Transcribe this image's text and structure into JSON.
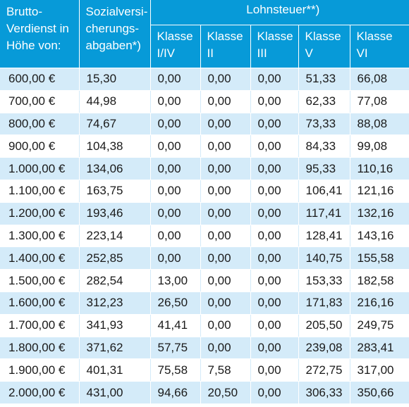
{
  "header": {
    "col_brutto": [
      "Brutto-",
      "Verdienst in",
      "Höhe von:"
    ],
    "col_sozial": [
      "Sozialversi-",
      "cherungs-",
      "abgaben*)"
    ],
    "lohnsteuer": "Lohnsteuer**)",
    "klassen": [
      [
        "Klasse",
        "I/IV"
      ],
      [
        "Klasse",
        "II"
      ],
      [
        "Klasse",
        "III"
      ],
      [
        "Klasse",
        "V"
      ],
      [
        "Klasse",
        "VI"
      ]
    ]
  },
  "rows": [
    [
      "600,00 €",
      "15,30",
      "0,00",
      "0,00",
      "0,00",
      "51,33",
      "66,08"
    ],
    [
      "700,00 €",
      "44,98",
      "0,00",
      "0,00",
      "0,00",
      "62,33",
      "77,08"
    ],
    [
      "800,00 €",
      "74,67",
      "0,00",
      "0,00",
      "0,00",
      "73,33",
      "88,08"
    ],
    [
      "900,00 €",
      "104,38",
      "0,00",
      "0,00",
      "0,00",
      "84,33",
      "99,08"
    ],
    [
      "1.000,00 €",
      "134,06",
      "0,00",
      "0,00",
      "0,00",
      "95,33",
      "110,16"
    ],
    [
      "1.100,00 €",
      "163,75",
      "0,00",
      "0,00",
      "0,00",
      "106,41",
      "121,16"
    ],
    [
      "1.200,00 €",
      "193,46",
      "0,00",
      "0,00",
      "0,00",
      "117,41",
      "132,16"
    ],
    [
      "1.300,00 €",
      "223,14",
      "0,00",
      "0,00",
      "0,00",
      "128,41",
      "143,16"
    ],
    [
      "1.400,00 €",
      "252,85",
      "0,00",
      "0,00",
      "0,00",
      "140,75",
      "155,58"
    ],
    [
      "1.500,00 €",
      "282,54",
      "13,00",
      "0,00",
      "0,00",
      "153,33",
      "182,58"
    ],
    [
      "1.600,00 €",
      "312,23",
      "26,50",
      "0,00",
      "0,00",
      "171,83",
      "216,16"
    ],
    [
      "1.700,00 €",
      "341,93",
      "41,41",
      "0,00",
      "0,00",
      "205,50",
      "249,75"
    ],
    [
      "1.800,00 €",
      "371,62",
      "57,75",
      "0,00",
      "0,00",
      "239,08",
      "283,41"
    ],
    [
      "1.900,00 €",
      "401,31",
      "75,58",
      "7,58",
      "0,00",
      "272,75",
      "317,00"
    ],
    [
      "2.000,00 €",
      "431,00",
      "94,66",
      "20,50",
      "0,00",
      "306,33",
      "350,66"
    ]
  ]
}
